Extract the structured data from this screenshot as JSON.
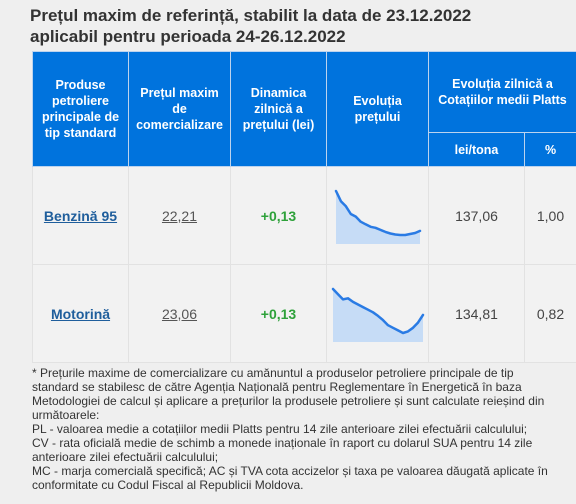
{
  "title": {
    "line1": "Prețul maxim de referință, stabilit la data de 23.12.2022",
    "line2": "aplicabil pentru perioada 24-26.12.2022"
  },
  "table": {
    "headers": {
      "product": "Produse petroliere principale de tip standard",
      "max_price": "Prețul maxim de comercializare",
      "dynamics": "Dinamica zilnică a prețului (lei)",
      "evolution": "Evoluția prețului",
      "platts": "Evoluția zilnică a Cotațiilor medii Platts",
      "unit": "lei/tona",
      "percent": "%"
    },
    "rows": [
      {
        "product": "Benzină 95",
        "price": "22,21",
        "change": "+0,13",
        "platts_value": "137,06",
        "platts_percent": "1,00",
        "trend": [
          22.9,
          22.7,
          22.6,
          22.45,
          22.4,
          22.3,
          22.25,
          22.2,
          22.18,
          22.14,
          22.1,
          22.07,
          22.05,
          22.04,
          22.04,
          22.06,
          22.08,
          22.12
        ]
      },
      {
        "product": "Motorină",
        "price": "23,06",
        "change": "+0,13",
        "platts_value": "134,81",
        "platts_percent": "0,82",
        "trend": [
          23.8,
          23.7,
          23.6,
          23.62,
          23.55,
          23.5,
          23.45,
          23.4,
          23.35,
          23.28,
          23.2,
          23.1,
          23.05,
          23.0,
          22.95,
          22.98,
          23.05,
          23.15,
          23.3
        ]
      }
    ]
  },
  "notes": [
    "* Prețurile maxime de comercializare cu amănuntul a produselor petroliere principale de tip standard se stabilesc de către Agenția Națională pentru Reglementare în Energetică în baza Metodologiei de calcul și aplicare a prețurilor la produsele petroliere și sunt calculate reieșind din următoarele:",
    "PL - valoarea medie a cotațiilor medii Platts pentru 14 zile anterioare zilei efectuării calculului;",
    "CV - rata oficială medie de schimb a monede inaționale în raport cu dolarul SUA pentru 14 zile anterioare zilei efectuării calculului;",
    "MC - marja comercială specifică; AC și TVA cota accizelor și taxa pe valoarea dăugată aplicate în conformitate cu Codul Fiscal al Republicii Moldova."
  ],
  "colors": {
    "header_bg": "#0073dd",
    "spark_line": "#2a7be4",
    "spark_fill": "#c6dcf6",
    "positive": "#2ea13a"
  }
}
